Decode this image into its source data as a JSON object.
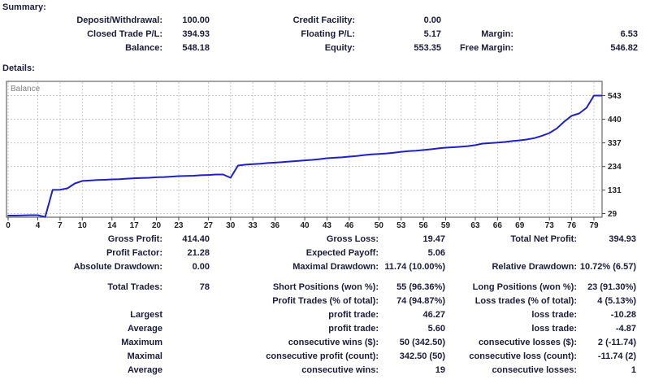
{
  "colors": {
    "text": "#1b1b3a",
    "chart_line": "#1f1fc8",
    "grid_line": "#c9c9c9",
    "plot_border": "#4a4a4a",
    "chart_label": "#808080",
    "axis_text": "#222222"
  },
  "summary": {
    "heading": "Summary:",
    "rows": [
      [
        "Deposit/Withdrawal:",
        "100.00",
        "Credit Facility:",
        "0.00",
        "",
        ""
      ],
      [
        "Closed Trade P/L:",
        "394.93",
        "Floating P/L:",
        "5.17",
        "Margin:",
        "6.53"
      ],
      [
        "Balance:",
        "548.18",
        "Equity:",
        "553.35",
        "Free Margin:",
        "546.82"
      ]
    ]
  },
  "details": {
    "heading": "Details:"
  },
  "chart_data": {
    "type": "line",
    "title": "Balance",
    "legend": "Balance",
    "legend_position": "top-left-inside",
    "grid": true,
    "x_note": "x value = trade number (index in values array)",
    "x_ticks": [
      0,
      4,
      7,
      10,
      14,
      17,
      20,
      23,
      27,
      30,
      33,
      36,
      40,
      43,
      46,
      50,
      53,
      56,
      59,
      63,
      66,
      69,
      73,
      76,
      79
    ],
    "y_ticks": [
      543,
      440,
      337,
      234,
      131,
      29
    ],
    "xlim": [
      0,
      80
    ],
    "ylim": [
      11,
      600
    ],
    "series": [
      {
        "name": "Balance",
        "values": [
          20,
          20,
          21,
          22,
          22,
          14,
          132,
          133,
          139,
          160,
          171,
          173,
          175,
          176,
          178,
          179,
          181,
          183,
          184,
          185,
          187,
          188,
          190,
          192,
          193,
          194,
          196,
          197,
          199,
          199,
          185,
          238,
          242,
          244,
          246,
          249,
          251,
          253,
          256,
          258,
          261,
          263,
          266,
          270,
          272,
          274,
          277,
          280,
          284,
          287,
          289,
          291,
          294,
          298,
          301,
          303,
          306,
          309,
          313,
          316,
          318,
          320,
          323,
          327,
          334,
          336,
          338,
          341,
          345,
          348,
          352,
          358,
          368,
          380,
          400,
          430,
          455,
          465,
          490,
          543,
          543
        ]
      }
    ]
  },
  "stats": {
    "block1": [
      [
        "Gross Profit:",
        "414.40",
        "Gross Loss:",
        "19.47",
        "Total Net Profit:",
        "394.93"
      ],
      [
        "Profit Factor:",
        "21.28",
        "Expected Payoff:",
        "5.06",
        "",
        ""
      ],
      [
        "Absolute Drawdown:",
        "0.00",
        "Maximal Drawdown:",
        "11.74 (10.00%)",
        "Relative Drawdown:",
        "10.72% (6.57)"
      ]
    ],
    "block2": [
      [
        "Total Trades:",
        "78",
        "Short Positions (won %):",
        "55 (96.36%)",
        "Long Positions (won %):",
        "23 (91.30%)"
      ],
      [
        "",
        "",
        "Profit Trades (% of total):",
        "74 (94.87%)",
        "Loss trades (% of total):",
        "4 (5.13%)"
      ],
      [
        "Largest",
        "",
        "profit trade:",
        "46.27",
        "loss trade:",
        "-10.28"
      ],
      [
        "Average",
        "",
        "profit trade:",
        "5.60",
        "loss trade:",
        "-4.87"
      ],
      [
        "Maximum",
        "",
        "consecutive wins ($):",
        "50 (342.50)",
        "consecutive losses ($):",
        "2 (-11.74)"
      ],
      [
        "Maximal",
        "",
        "consecutive profit (count):",
        "342.50 (50)",
        "consecutive loss (count):",
        "-11.74 (2)"
      ],
      [
        "Average",
        "",
        "consecutive wins:",
        "19",
        "consecutive losses:",
        "1"
      ]
    ]
  }
}
